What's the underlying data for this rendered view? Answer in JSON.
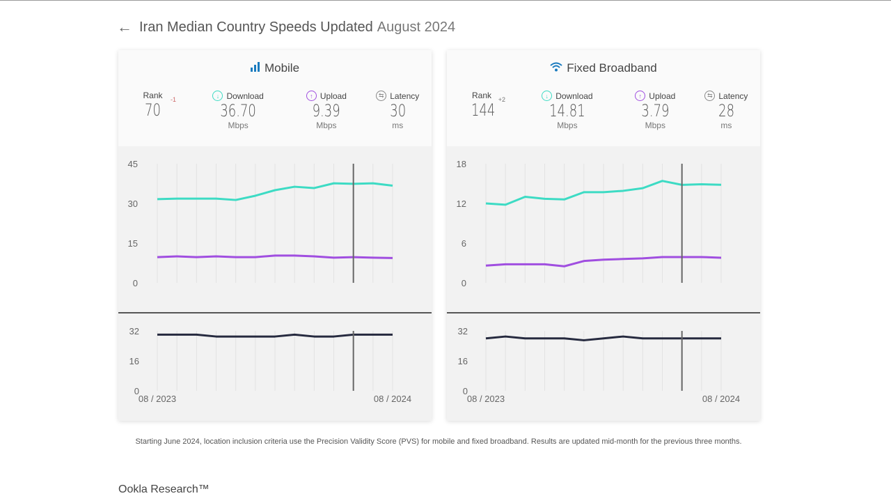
{
  "header": {
    "title_main": "Iran Median Country Speeds Updated",
    "title_date": "August 2024"
  },
  "colors": {
    "download": "#3ddbc4",
    "upload": "#a04ee0",
    "latency": "#262a3f",
    "icon_blue": "#1a7bbf"
  },
  "cards": [
    {
      "title": "Mobile",
      "icon": "signal-bars-icon",
      "rank_label": "Rank",
      "rank": "70",
      "rank_delta": "-1",
      "download_label": "Download",
      "download": "36.70",
      "download_unit": "Mbps",
      "upload_label": "Upload",
      "upload": "9.39",
      "upload_unit": "Mbps",
      "latency_label": "Latency",
      "latency": "30",
      "latency_unit": "ms",
      "x_start": "08 / 2023",
      "x_end": "08 / 2024",
      "speed_ticks": [
        "45",
        "30",
        "15",
        "0"
      ],
      "speed_max": 45,
      "latency_ticks": [
        "32",
        "16",
        "0"
      ],
      "latency_max": 32,
      "marker_index": 10,
      "download_series": [
        31.6,
        31.8,
        31.8,
        31.8,
        31.3,
        32.9,
        35,
        36.3,
        35.8,
        37.6,
        37.4,
        37.6,
        36.7
      ],
      "upload_series": [
        9.7,
        10,
        9.7,
        10,
        9.7,
        9.7,
        10.3,
        10.3,
        10,
        9.5,
        9.7,
        9.5,
        9.39
      ],
      "latency_series": [
        30,
        30,
        30,
        29,
        29,
        29,
        29,
        30,
        29,
        29,
        30,
        30,
        30
      ]
    },
    {
      "title": "Fixed Broadband",
      "icon": "wifi-icon",
      "rank_label": "Rank",
      "rank": "144",
      "rank_delta": "+2",
      "download_label": "Download",
      "download": "14.81",
      "download_unit": "Mbps",
      "upload_label": "Upload",
      "upload": "3.79",
      "upload_unit": "Mbps",
      "latency_label": "Latency",
      "latency": "28",
      "latency_unit": "ms",
      "x_start": "08 / 2023",
      "x_end": "08 / 2024",
      "speed_ticks": [
        "18",
        "12",
        "6",
        "0"
      ],
      "speed_max": 18,
      "latency_ticks": [
        "32",
        "16",
        "0"
      ],
      "latency_max": 32,
      "marker_index": 10,
      "download_series": [
        12,
        11.8,
        13,
        12.7,
        12.6,
        13.7,
        13.7,
        13.9,
        14.3,
        15.4,
        14.8,
        14.9,
        14.81
      ],
      "upload_series": [
        2.6,
        2.8,
        2.8,
        2.8,
        2.5,
        3.3,
        3.5,
        3.6,
        3.7,
        3.9,
        3.9,
        3.9,
        3.79
      ],
      "latency_series": [
        28,
        29,
        28,
        28,
        28,
        27,
        28,
        29,
        28,
        28,
        28,
        28,
        28
      ]
    }
  ],
  "note": "Starting June 2024, location inclusion criteria use the Precision Validity Score (PVS) for mobile and fixed broadband. Results are updated mid-month for the previous three months.",
  "bottom_text": "Ookla Research™"
}
